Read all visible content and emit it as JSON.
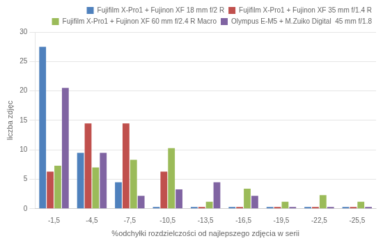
{
  "chart_data": {
    "type": "bar",
    "categories": [
      "-1,5",
      "-4,5",
      "-7,5",
      "-10,5",
      "-13,5",
      "-16,5",
      "-19,5",
      "-22,5",
      "-25,5"
    ],
    "series": [
      {
        "name": "Fujifilm X-Pro1 + Fujinon XF 18 mm f/2 R",
        "color": "#4F81BD",
        "values": [
          27.5,
          9.5,
          4.5,
          0.3,
          0.3,
          0.3,
          0.3,
          0.3,
          0.3
        ]
      },
      {
        "name": "Fujifilm X-Pro1 + Fujinon XF 35 mm f/1.4 R",
        "color": "#C0504D",
        "values": [
          6.3,
          14.5,
          14.5,
          6.3,
          0.3,
          0.3,
          0.3,
          0.3,
          0.3
        ]
      },
      {
        "name": "Fujifilm X-Pro1 + Fujinon XF 60 mm f/2.4 R Macro",
        "color": "#9BBB59",
        "values": [
          7.3,
          7.0,
          8.3,
          10.3,
          1.2,
          3.4,
          1.2,
          2.3,
          1.2
        ]
      },
      {
        "name": "Olympus E-M5 + M.Zuiko Digital  45 mm f/1.8",
        "color": "#8064A2",
        "values": [
          20.5,
          9.5,
          2.2,
          3.3,
          4.5,
          2.2,
          0.3,
          0.3,
          0.3
        ]
      }
    ],
    "xlabel": "%odchyłki rozdzielczości od najlepszego zdjęcia w serii",
    "ylabel": "liczba zdjęc",
    "ylim": [
      0,
      30
    ],
    "yticks": [
      0,
      5,
      10,
      15,
      20,
      25,
      30
    ],
    "grid": true,
    "legend": "upper right"
  }
}
